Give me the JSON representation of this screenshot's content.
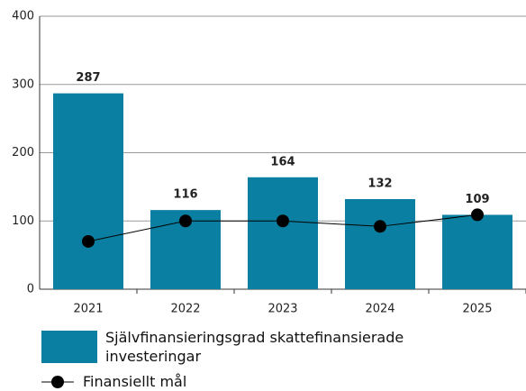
{
  "chart_data": {
    "type": "bar",
    "categories": [
      "2021",
      "2022",
      "2023",
      "2024",
      "2025"
    ],
    "series": [
      {
        "name": "Självfinansieringsgrad skattefinansierade investeringar",
        "type": "bar",
        "color": "#0a7fa1",
        "values": [
          287,
          116,
          164,
          132,
          109
        ]
      },
      {
        "name": "Finansiellt mål",
        "type": "line",
        "color": "#000000",
        "values": [
          70,
          100,
          100,
          92,
          109
        ]
      }
    ],
    "ylim": [
      0,
      400
    ],
    "yticks": [
      0,
      100,
      200,
      300,
      400
    ],
    "grid": true,
    "legend": "bottom"
  }
}
